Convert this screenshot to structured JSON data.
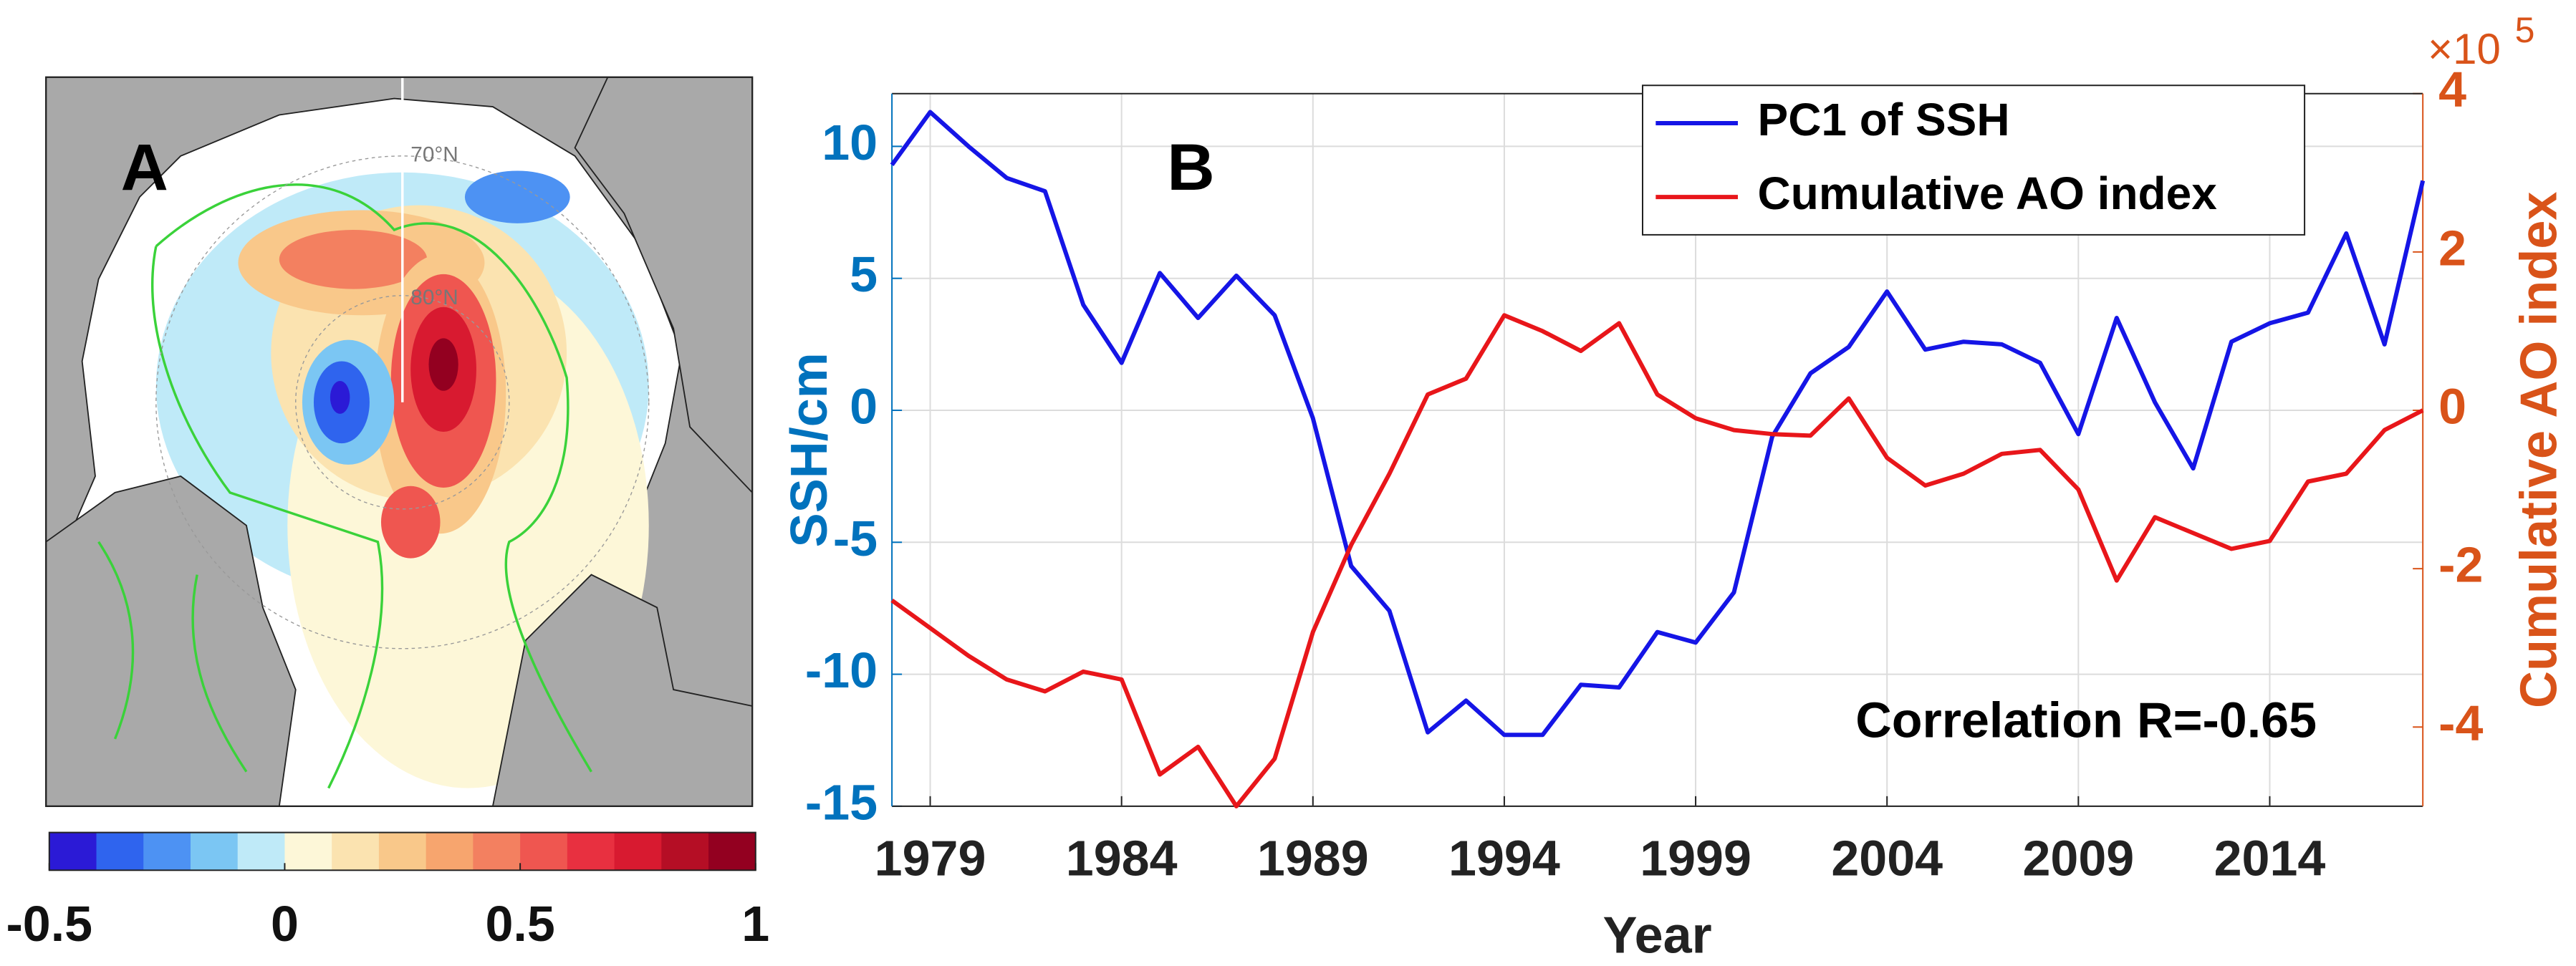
{
  "chart_data": [
    {
      "type": "map",
      "label": "A",
      "lat_labels": [
        "70°N",
        "80°N"
      ],
      "colorbar": {
        "lim": [
          -0.5,
          1
        ],
        "ticks": [
          -0.5,
          0,
          0.5,
          1
        ],
        "colors": [
          "#2b1ad6",
          "#2f64ee",
          "#4d92f3",
          "#7bc6f3",
          "#bfeaf8",
          "#fdf7d8",
          "#fbe3b0",
          "#f9c88a",
          "#f7a56e",
          "#f38060",
          "#ef5650",
          "#e83040",
          "#d81a30",
          "#b50e25",
          "#930020"
        ]
      }
    },
    {
      "type": "line",
      "label": "B",
      "xlabel": "Year",
      "ylabel": "SSH/cm",
      "y2label": "Cumulative AO index",
      "y2_exponent": {
        "base": "×10",
        "power": "5"
      },
      "annotation": "Correlation R=-0.65",
      "x": [
        1978,
        1979,
        1980,
        1981,
        1982,
        1983,
        1984,
        1985,
        1986,
        1987,
        1988,
        1989,
        1990,
        1991,
        1992,
        1993,
        1994,
        1995,
        1996,
        1997,
        1998,
        1999,
        2000,
        2001,
        2002,
        2003,
        2004,
        2005,
        2006,
        2007,
        2008,
        2009,
        2010,
        2011,
        2012,
        2013,
        2014,
        2015,
        2016,
        2017,
        2018
      ],
      "xlim": [
        1978,
        2018
      ],
      "xticks": [
        1979,
        1984,
        1989,
        1994,
        1999,
        2004,
        2009,
        2014
      ],
      "ylim": [
        -15,
        12
      ],
      "yticks": [
        -15,
        -10,
        -5,
        0,
        5,
        10
      ],
      "y2lim": [
        -5,
        4
      ],
      "y2ticks": [
        -4,
        -2,
        0,
        2,
        4
      ],
      "ycolor": "#0072bd",
      "y2color": "#d95319",
      "grid": true,
      "legend": "top-right",
      "series": [
        {
          "name": "PC1 of SSH",
          "color": "#1515e6",
          "values": [
            9.3,
            11.3,
            10.0,
            8.8,
            8.3,
            4.0,
            1.8,
            5.2,
            3.5,
            5.1,
            3.6,
            -0.3,
            -5.9,
            -7.6,
            -12.2,
            -11.0,
            -12.3,
            -12.3,
            -10.4,
            -10.5,
            -8.4,
            -8.8,
            -6.9,
            -1.0,
            1.4,
            2.4,
            4.5,
            2.3,
            2.6,
            2.5,
            1.8,
            -0.9,
            3.5,
            0.3,
            -2.2,
            2.6,
            3.3,
            3.7,
            6.7,
            2.5,
            8.7
          ]
        },
        {
          "name": "Cumulative AO index",
          "color": "#e8161a",
          "axis": "y2",
          "values": [
            -2.4,
            -2.75,
            -3.1,
            -3.4,
            -3.55,
            -3.3,
            -3.4,
            -4.6,
            -4.25,
            -5.0,
            -4.4,
            -2.8,
            -1.7,
            -0.8,
            0.2,
            0.4,
            1.2,
            1.0,
            0.75,
            1.1,
            0.2,
            -0.1,
            -0.25,
            -0.3,
            -0.32,
            0.15,
            -0.6,
            -0.95,
            -0.8,
            -0.55,
            -0.5,
            -1.0,
            -2.15,
            -1.35,
            -1.55,
            -1.75,
            -1.65,
            -0.9,
            -0.8,
            -0.25,
            0
          ]
        }
      ]
    }
  ]
}
